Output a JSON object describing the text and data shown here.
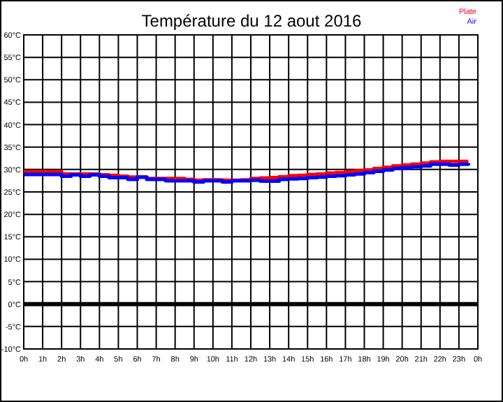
{
  "chart_data": {
    "type": "step",
    "title": "Température du 12 aout 2016",
    "x": [
      "2016-08-12T00:00",
      "2016-08-12T00:30",
      "2016-08-12T01:00",
      "2016-08-12T01:30",
      "2016-08-12T02:00",
      "2016-08-12T02:30",
      "2016-08-12T03:00",
      "2016-08-12T03:30",
      "2016-08-12T04:00",
      "2016-08-12T04:30",
      "2016-08-12T05:00",
      "2016-08-12T05:30",
      "2016-08-12T06:00",
      "2016-08-12T06:30",
      "2016-08-12T07:00",
      "2016-08-12T07:30",
      "2016-08-12T08:00",
      "2016-08-12T08:30",
      "2016-08-12T09:00",
      "2016-08-12T09:30",
      "2016-08-12T10:00",
      "2016-08-12T10:30",
      "2016-08-12T11:00",
      "2016-08-12T11:30",
      "2016-08-12T12:00",
      "2016-08-12T12:30",
      "2016-08-12T13:00",
      "2016-08-12T13:30",
      "2016-08-12T14:00",
      "2016-08-12T14:30",
      "2016-08-12T15:00",
      "2016-08-12T15:30",
      "2016-08-12T16:00",
      "2016-08-12T16:30",
      "2016-08-12T17:00",
      "2016-08-12T17:30",
      "2016-08-12T18:00",
      "2016-08-12T18:30",
      "2016-08-12T19:00",
      "2016-08-12T19:30",
      "2016-08-12T20:00",
      "2016-08-12T20:30",
      "2016-08-12T21:00",
      "2016-08-12T21:30",
      "2016-08-12T22:00",
      "2016-08-12T22:30",
      "2016-08-12T23:00",
      "2016-08-12T23:30"
    ],
    "series": [
      {
        "name": "Plate",
        "color": "#ff0000",
        "values": [
          29.5,
          29.5,
          29.5,
          29.5,
          29,
          29,
          29,
          29,
          28.8,
          28.7,
          28.5,
          28.3,
          28.3,
          28,
          28,
          28,
          28,
          27.8,
          27.6,
          27.7,
          27.7,
          27.6,
          27.6,
          27.7,
          28,
          28.1,
          28.2,
          28.4,
          28.6,
          28.7,
          28.9,
          29,
          29.2,
          29.3,
          29.5,
          29.7,
          29.9,
          30.2,
          30.5,
          30.8,
          31,
          31.2,
          31.4,
          31.7,
          31.8,
          31.8,
          31.8,
          31.8
        ]
      },
      {
        "name": "Air",
        "color": "#0000ff",
        "values": [
          28.9,
          28.9,
          28.9,
          28.9,
          28.5,
          28.8,
          28.5,
          28.8,
          28.5,
          28.2,
          28.2,
          27.8,
          28.3,
          27.8,
          27.8,
          27.5,
          27.5,
          27.5,
          27.2,
          27.5,
          27.5,
          27.2,
          27.5,
          27.5,
          27.6,
          27.4,
          27.4,
          27.8,
          27.9,
          28,
          28.2,
          28.3,
          28.5,
          28.6,
          28.8,
          29,
          29.3,
          29.6,
          29.9,
          30.2,
          30.4,
          30.6,
          30.8,
          31.2,
          31.2,
          31,
          31.2,
          31.4
        ]
      }
    ],
    "xlim": [
      "2016-08-12T00:00",
      "2016-08-13T00:00"
    ],
    "xticks": [
      {
        "value": "2016-08-12T00:00",
        "label": "0h"
      },
      {
        "value": "2016-08-12T01:00",
        "label": "1h"
      },
      {
        "value": "2016-08-12T02:00",
        "label": "2h"
      },
      {
        "value": "2016-08-12T03:00",
        "label": "3h"
      },
      {
        "value": "2016-08-12T04:00",
        "label": "4h"
      },
      {
        "value": "2016-08-12T05:00",
        "label": "5h"
      },
      {
        "value": "2016-08-12T06:00",
        "label": "6h"
      },
      {
        "value": "2016-08-12T07:00",
        "label": "7h"
      },
      {
        "value": "2016-08-12T08:00",
        "label": "8h"
      },
      {
        "value": "2016-08-12T09:00",
        "label": "9h"
      },
      {
        "value": "2016-08-12T10:00",
        "label": "10h"
      },
      {
        "value": "2016-08-12T11:00",
        "label": "11h"
      },
      {
        "value": "2016-08-12T12:00",
        "label": "12h"
      },
      {
        "value": "2016-08-12T13:00",
        "label": "13h"
      },
      {
        "value": "2016-08-12T14:00",
        "label": "14h"
      },
      {
        "value": "2016-08-12T15:00",
        "label": "15h"
      },
      {
        "value": "2016-08-12T16:00",
        "label": "16h"
      },
      {
        "value": "2016-08-12T17:00",
        "label": "17h"
      },
      {
        "value": "2016-08-12T18:00",
        "label": "18h"
      },
      {
        "value": "2016-08-12T19:00",
        "label": "19h"
      },
      {
        "value": "2016-08-12T20:00",
        "label": "20h"
      },
      {
        "value": "2016-08-12T21:00",
        "label": "21h"
      },
      {
        "value": "2016-08-12T22:00",
        "label": "22h"
      },
      {
        "value": "2016-08-12T23:00",
        "label": "23h"
      },
      {
        "value": "2016-08-13T00:00",
        "label": "0h"
      }
    ],
    "ylim": [
      -10,
      60
    ],
    "yticks": [
      {
        "value": -10,
        "label": "-10°C"
      },
      {
        "value": -5,
        "label": "-5°C"
      },
      {
        "value": 0,
        "label": "0°C"
      },
      {
        "value": 5,
        "label": "5°C"
      },
      {
        "value": 10,
        "label": "10°C"
      },
      {
        "value": 15,
        "label": "15°C"
      },
      {
        "value": 20,
        "label": "20°C"
      },
      {
        "value": 25,
        "label": "25°C"
      },
      {
        "value": 30,
        "label": "30°C"
      },
      {
        "value": 35,
        "label": "35°C"
      },
      {
        "value": 40,
        "label": "40°C"
      },
      {
        "value": 45,
        "label": "45°C"
      },
      {
        "value": 50,
        "label": "50°C"
      },
      {
        "value": 55,
        "label": "55°C"
      },
      {
        "value": 60,
        "label": "60°C"
      }
    ],
    "grid": true,
    "legend": "top right",
    "ref_lines": [
      {
        "axis": "y",
        "value": 0,
        "color": "#000000"
      }
    ]
  }
}
